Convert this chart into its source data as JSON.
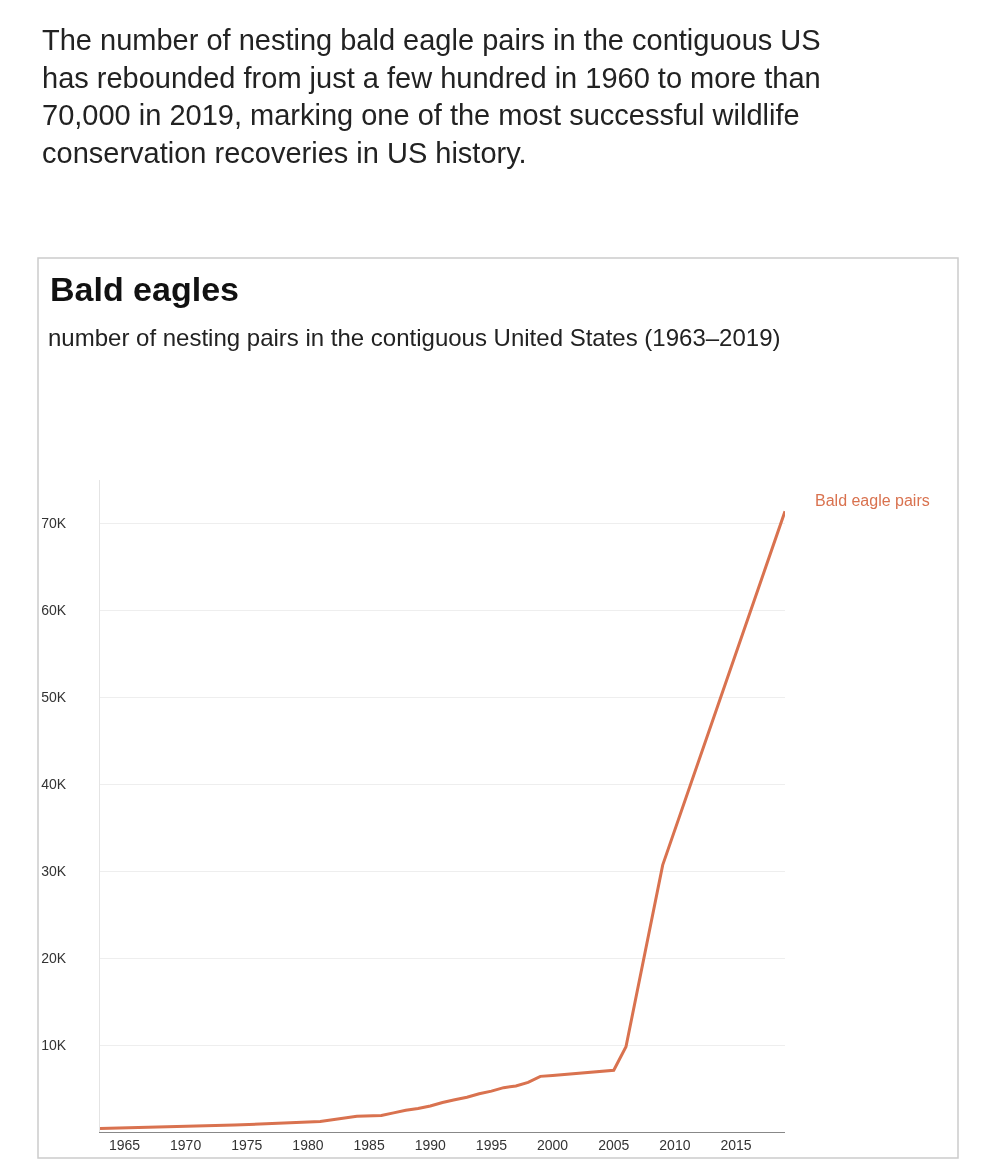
{
  "chart_data": {
    "type": "line",
    "title": "Bald eagles",
    "subtitle": "number of nesting pairs in the contiguous United States (1963–2019)",
    "annotations": [
      "The number of nesting bald eagle pairs in the contiguous US has rebounded from just a few hundred in 1960 to more than 70,000 in 2019, marking one of the most successful wildlife conservation recoveries in US history."
    ],
    "x": [
      1963,
      1974,
      1981,
      1984,
      1986,
      1987,
      1988,
      1989,
      1990,
      1991,
      1992,
      1993,
      1994,
      1995,
      1996,
      1997,
      1998,
      1999,
      2000,
      2005,
      2006,
      2009,
      2019
    ],
    "series": [
      {
        "name": "Bald eagle pairs",
        "color": "#d9724f",
        "values": [
          400,
          800,
          1200,
          1800,
          1900,
          2200,
          2500,
          2700,
          3000,
          3400,
          3700,
          4000,
          4400,
          4700,
          5100,
          5300,
          5700,
          6400,
          6500,
          7100,
          9800,
          30700,
          71400
        ]
      }
    ],
    "xlim": [
      1963,
      2019
    ],
    "xticks": [
      1965,
      1970,
      1975,
      1980,
      1985,
      1990,
      1995,
      2000,
      2005,
      2010,
      2015
    ],
    "ylim": [
      0,
      75000
    ],
    "yticks": [
      {
        "value": 10000,
        "label": "10K"
      },
      {
        "value": 20000,
        "label": "20K"
      },
      {
        "value": 30000,
        "label": "30K"
      },
      {
        "value": 40000,
        "label": "40K"
      },
      {
        "value": 50000,
        "label": "50K"
      },
      {
        "value": 60000,
        "label": "60K"
      },
      {
        "value": 70000,
        "label": "70K"
      }
    ],
    "grid": "y",
    "legend": false,
    "marker": "none",
    "line_style": "solid"
  }
}
